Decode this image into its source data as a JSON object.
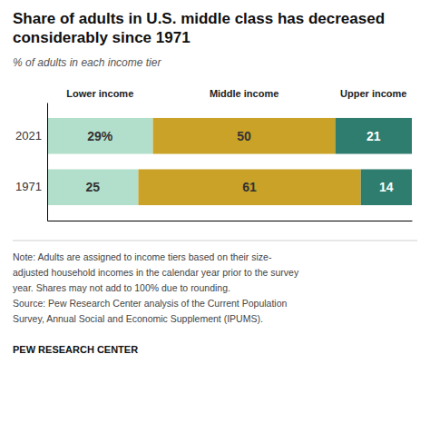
{
  "chart_data": {
    "type": "bar",
    "orientation": "horizontal",
    "stacked": true,
    "data_labels": true,
    "tick_labels": "y",
    "title": "Share of adults in U.S. middle class has decreased considerably since 1971",
    "subtitle": "% of adults in each income tier",
    "categories": [
      "2021",
      "1971"
    ],
    "series": [
      {
        "name": "Lower income",
        "color": "#b2dfcc",
        "values": [
          29,
          25
        ],
        "value_labels": [
          "29%",
          "25"
        ]
      },
      {
        "name": "Middle income",
        "color": "#c9a227",
        "values": [
          50,
          61
        ]
      },
      {
        "name": "Upper income",
        "color": "#2e7d6e",
        "values": [
          21,
          14
        ]
      }
    ],
    "xlim": [
      0,
      100
    ],
    "annotations": [
      "Note: Adults are assigned to income tiers based on their size-",
      "adjusted household incomes in the calendar year prior to the survey",
      "year. Shares may not add to 100% due to rounding.",
      "Source: Pew Research Center analysis of the Current Population",
      "Survey, Annual Social and Economic Supplement (IPUMS).",
      "PEW RESEARCH CENTER"
    ]
  }
}
